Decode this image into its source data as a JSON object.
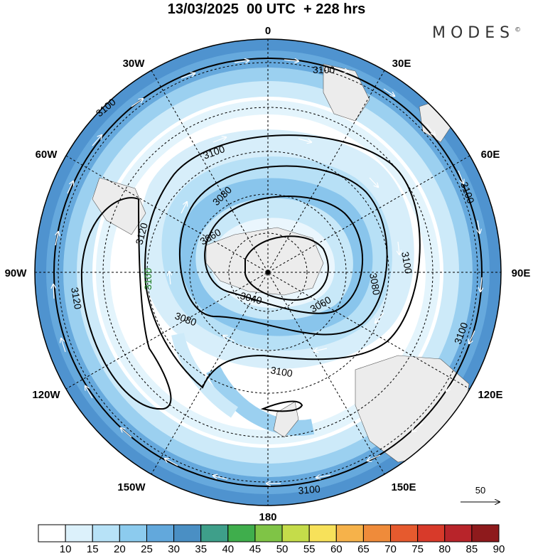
{
  "title": "13/03/2025  00 UTC  + 228 hrs",
  "brand": "MODES",
  "brand_mark": "©",
  "map": {
    "projection": "south polar stereographic",
    "center": "South Pole",
    "lon_labels": {
      "top": "0",
      "bottom": "180",
      "left": "90W",
      "right": "90E",
      "tl1": "30W",
      "tl2": "60W",
      "tr1": "30E",
      "tr2": "60E",
      "bl1": "120W",
      "bl2": "150W",
      "br1": "120E",
      "br2": "150E"
    },
    "contour_labels": {
      "c3100_a": "3100",
      "c3100_b": "3100",
      "c3100_c": "3100",
      "c3100_d": "3100",
      "c3100_e": "3100",
      "c3100_f": "3100",
      "c3100_g": "3100",
      "c3100_h": "3100",
      "c3120_a": "3120",
      "c3120_b": "3120",
      "c3080_a": "3080",
      "c3080_b": "3080",
      "c3080_c": "3080",
      "c3060_a": "3060",
      "c3060_b": "3060",
      "c3040_a": "3040"
    },
    "vector_reference": "50"
  },
  "colorbar": {
    "labels": [
      "10",
      "15",
      "20",
      "25",
      "30",
      "35",
      "40",
      "45",
      "50",
      "55",
      "60",
      "65",
      "70",
      "75",
      "80",
      "85",
      "90"
    ],
    "colors": [
      "#ffffff",
      "#dcf1fb",
      "#b7e2f7",
      "#8ccbee",
      "#62a8dc",
      "#4a8fc4",
      "#3e9f8a",
      "#3fae4c",
      "#7fc446",
      "#c5dc4a",
      "#f7e15a",
      "#f6b24a",
      "#ef8b3a",
      "#e65a2e",
      "#d83a2a",
      "#b8242a",
      "#8e1a1c"
    ]
  }
}
